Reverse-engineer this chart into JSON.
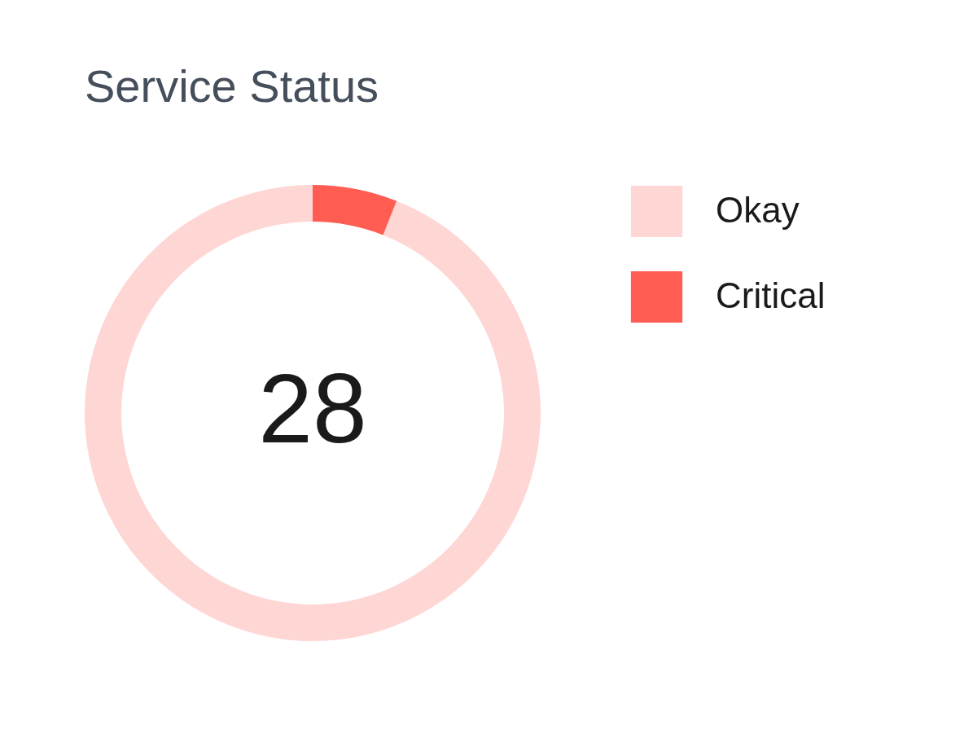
{
  "chart_data": {
    "type": "donut",
    "title": "Service Status",
    "categories": [
      "Okay",
      "Critical"
    ],
    "values": [
      94,
      6
    ],
    "colors": [
      "#fed6d4",
      "#ff5c52"
    ],
    "annotations": [
      "28"
    ],
    "legend": "right"
  }
}
